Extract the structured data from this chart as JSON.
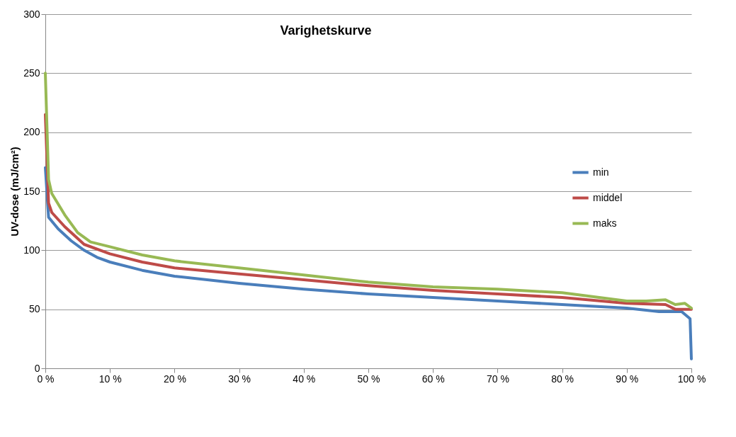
{
  "chart_data": {
    "type": "line",
    "title": "Varighetskurve",
    "ylabel": "UV-dose (mJ/cm²)",
    "xlim": [
      0,
      100
    ],
    "xticks": [
      {
        "value": 0,
        "label": "0 %"
      },
      {
        "value": 10,
        "label": "10 %"
      },
      {
        "value": 20,
        "label": "20 %"
      },
      {
        "value": 30,
        "label": "30 %"
      },
      {
        "value": 40,
        "label": "40 %"
      },
      {
        "value": 50,
        "label": "50 %"
      },
      {
        "value": 60,
        "label": "60 %"
      },
      {
        "value": 70,
        "label": "70 %"
      },
      {
        "value": 80,
        "label": "80 %"
      },
      {
        "value": 90,
        "label": "90 %"
      },
      {
        "value": 100,
        "label": "100 %"
      }
    ],
    "ylim": [
      0,
      300
    ],
    "yticks": [
      0,
      50,
      100,
      150,
      200,
      250,
      300
    ],
    "grid": "y",
    "legend": "right",
    "marker": "none",
    "line_style": "solid",
    "series": [
      {
        "name": "min",
        "color": "#4a7ebb",
        "x": [
          0,
          0.5,
          2,
          4,
          6,
          8,
          10,
          15,
          20,
          30,
          40,
          50,
          60,
          70,
          80,
          90,
          95,
          97,
          98.5,
          99.8,
          100
        ],
        "values": [
          170,
          128,
          118,
          108,
          100,
          94,
          90,
          83,
          78,
          72,
          67,
          63,
          60,
          57,
          54,
          51,
          48,
          48,
          48,
          42,
          8
        ]
      },
      {
        "name": "middel",
        "color": "#be4b48",
        "x": [
          0,
          0.5,
          1,
          3,
          6,
          10,
          15,
          20,
          30,
          40,
          50,
          60,
          70,
          80,
          90,
          96,
          97.5,
          100
        ],
        "values": [
          215,
          140,
          132,
          120,
          105,
          97,
          90,
          85,
          80,
          75,
          70,
          66,
          63,
          60,
          55,
          54,
          50,
          50
        ]
      },
      {
        "name": "maks",
        "color": "#98b954",
        "x": [
          0,
          0.5,
          1,
          3,
          5,
          7,
          10,
          15,
          20,
          30,
          40,
          50,
          60,
          70,
          80,
          90,
          93,
          96,
          97.5,
          99,
          100
        ],
        "values": [
          250,
          160,
          148,
          130,
          115,
          107,
          103,
          96,
          91,
          85,
          79,
          73,
          69,
          67,
          64,
          57,
          57,
          58,
          54,
          55,
          51
        ]
      }
    ]
  }
}
